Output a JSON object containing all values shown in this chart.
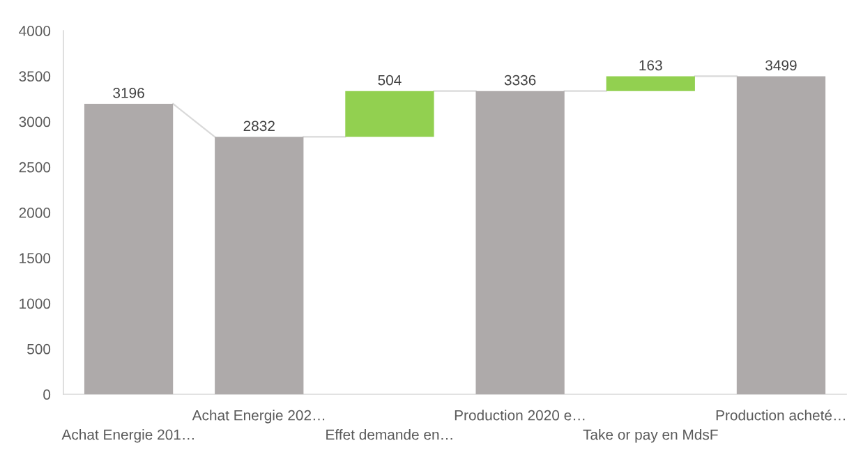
{
  "chart_data": {
    "type": "bar",
    "categories": [
      "Achat Energie 201…",
      "Achat Energie 202…",
      "Effet demande en…",
      "Production 2020 e…",
      "Take or pay en MdsF",
      "Production acheté…"
    ],
    "values": [
      3196,
      2832,
      504,
      3336,
      163,
      3499
    ],
    "base": [
      0,
      0,
      2832,
      0,
      3336,
      0
    ],
    "colors": [
      "#aeaaaa",
      "#aeaaaa",
      "#92d050",
      "#aeaaaa",
      "#92d050",
      "#aeaaaa"
    ],
    "ylim": [
      0,
      4000
    ],
    "yticks": [
      0,
      500,
      1000,
      1500,
      2000,
      2500,
      3000,
      3500,
      4000
    ],
    "data_labels": true,
    "grid": false
  }
}
